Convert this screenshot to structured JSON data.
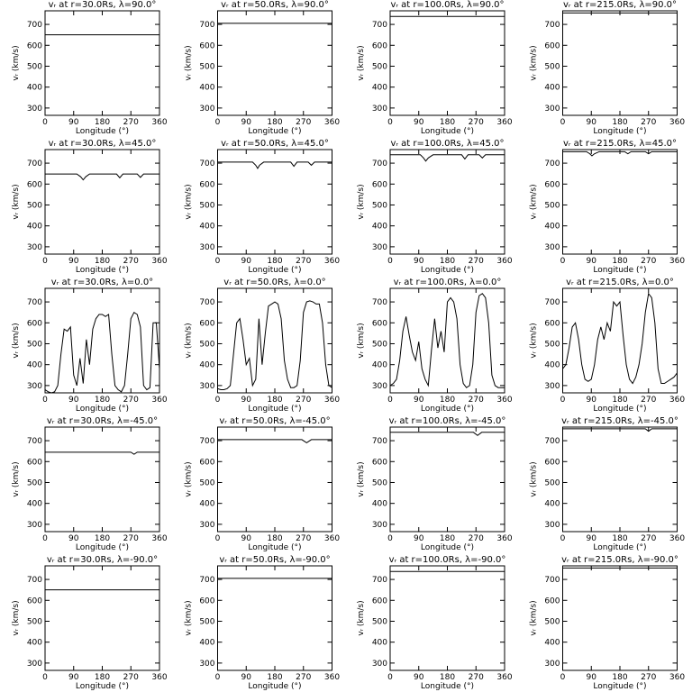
{
  "chart_data": [
    {
      "type": "line",
      "title": "vᵣ at r=30.0Rs, λ=90.0°",
      "xlabel": "Longitude (°)",
      "ylabel": "vᵣ (km/s)",
      "x": [
        0,
        360
      ],
      "values": [
        650,
        650
      ],
      "color": "#000000",
      "xlim": [
        0,
        360
      ],
      "ylim": [
        265,
        765
      ],
      "xticks": [
        0,
        90,
        180,
        270,
        360
      ],
      "yticks": [
        300,
        400,
        500,
        600,
        700
      ]
    },
    {
      "type": "line",
      "title": "vᵣ at r=50.0Rs, λ=90.0°",
      "xlabel": "Longitude (°)",
      "ylabel": "vᵣ (km/s)",
      "x": [
        0,
        360
      ],
      "values": [
        705,
        705
      ],
      "color": "#000000",
      "xlim": [
        0,
        360
      ],
      "ylim": [
        265,
        765
      ],
      "xticks": [
        0,
        90,
        180,
        270,
        360
      ],
      "yticks": [
        300,
        400,
        500,
        600,
        700
      ]
    },
    {
      "type": "line",
      "title": "vᵣ at r=100.0Rs, λ=90.0°",
      "xlabel": "Longitude (°)",
      "ylabel": "vᵣ (km/s)",
      "x": [
        0,
        360
      ],
      "values": [
        738,
        738
      ],
      "color": "#000000",
      "xlim": [
        0,
        360
      ],
      "ylim": [
        265,
        765
      ],
      "xticks": [
        0,
        90,
        180,
        270,
        360
      ],
      "yticks": [
        300,
        400,
        500,
        600,
        700
      ]
    },
    {
      "type": "line",
      "title": "vᵣ at r=215.0Rs, λ=90.0°",
      "xlabel": "Longitude (°)",
      "ylabel": "vᵣ (km/s)",
      "x": [
        0,
        360
      ],
      "values": [
        755,
        755
      ],
      "color": "#000000",
      "xlim": [
        0,
        360
      ],
      "ylim": [
        265,
        765
      ],
      "xticks": [
        0,
        90,
        180,
        270,
        360
      ],
      "yticks": [
        300,
        400,
        500,
        600,
        700
      ]
    },
    {
      "type": "line",
      "title": "vᵣ at r=30.0Rs, λ=45.0°",
      "xlabel": "Longitude (°)",
      "ylabel": "vᵣ (km/s)",
      "x": [
        0,
        100,
        112,
        120,
        128,
        140,
        225,
        235,
        245,
        290,
        300,
        310,
        360
      ],
      "values": [
        648,
        648,
        635,
        620,
        635,
        648,
        648,
        630,
        648,
        648,
        632,
        648,
        648
      ],
      "color": "#000000",
      "xlim": [
        0,
        360
      ],
      "ylim": [
        265,
        765
      ],
      "xticks": [
        0,
        90,
        180,
        270,
        360
      ],
      "yticks": [
        300,
        400,
        500,
        600,
        700
      ]
    },
    {
      "type": "line",
      "title": "vᵣ at r=50.0Rs, λ=45.0°",
      "xlabel": "Longitude (°)",
      "ylabel": "vᵣ (km/s)",
      "x": [
        0,
        110,
        120,
        126,
        132,
        145,
        230,
        240,
        250,
        285,
        295,
        305,
        360
      ],
      "values": [
        705,
        705,
        690,
        675,
        690,
        705,
        705,
        685,
        705,
        705,
        690,
        705,
        705
      ],
      "color": "#000000",
      "xlim": [
        0,
        360
      ],
      "ylim": [
        265,
        765
      ],
      "xticks": [
        0,
        90,
        180,
        270,
        360
      ],
      "yticks": [
        300,
        400,
        500,
        600,
        700
      ]
    },
    {
      "type": "line",
      "title": "vᵣ at r=100.0Rs, λ=45.0°",
      "xlabel": "Longitude (°)",
      "ylabel": "vᵣ (km/s)",
      "x": [
        0,
        95,
        105,
        112,
        120,
        135,
        225,
        235,
        245,
        280,
        290,
        300,
        360
      ],
      "values": [
        740,
        740,
        725,
        710,
        725,
        740,
        740,
        720,
        740,
        740,
        725,
        740,
        740
      ],
      "color": "#000000",
      "xlim": [
        0,
        360
      ],
      "ylim": [
        265,
        765
      ],
      "xticks": [
        0,
        90,
        180,
        270,
        360
      ],
      "yticks": [
        300,
        400,
        500,
        600,
        700
      ]
    },
    {
      "type": "line",
      "title": "vᵣ at r=215.0Rs, λ=45.0°",
      "xlabel": "Longitude (°)",
      "ylabel": "vᵣ (km/s)",
      "x": [
        0,
        75,
        85,
        92,
        100,
        115,
        195,
        205,
        215,
        260,
        270,
        280,
        360
      ],
      "values": [
        755,
        755,
        745,
        735,
        745,
        755,
        755,
        745,
        755,
        755,
        745,
        755,
        755
      ],
      "color": "#000000",
      "xlim": [
        0,
        360
      ],
      "ylim": [
        265,
        765
      ],
      "xticks": [
        0,
        90,
        180,
        270,
        360
      ],
      "yticks": [
        300,
        400,
        500,
        600,
        700
      ]
    },
    {
      "type": "line",
      "title": "vᵣ at r=30.0Rs, λ=0.0°",
      "xlabel": "Longitude (°)",
      "ylabel": "vᵣ (km/s)",
      "x": [
        0,
        10,
        20,
        30,
        40,
        50,
        60,
        70,
        80,
        90,
        100,
        110,
        120,
        130,
        140,
        150,
        160,
        170,
        180,
        190,
        200,
        210,
        220,
        230,
        240,
        250,
        260,
        270,
        280,
        290,
        300,
        310,
        320,
        330,
        340,
        350,
        360
      ],
      "values": [
        280,
        270,
        265,
        270,
        300,
        450,
        570,
        560,
        580,
        350,
        300,
        430,
        310,
        520,
        400,
        570,
        620,
        640,
        640,
        630,
        640,
        450,
        300,
        280,
        270,
        300,
        450,
        620,
        650,
        640,
        580,
        300,
        280,
        290,
        600,
        600,
        380
      ],
      "color": "#000000",
      "xlim": [
        0,
        360
      ],
      "ylim": [
        265,
        765
      ],
      "xticks": [
        0,
        90,
        180,
        270,
        360
      ],
      "yticks": [
        300,
        400,
        500,
        600,
        700
      ]
    },
    {
      "type": "line",
      "title": "vᵣ at r=50.0Rs, λ=0.0°",
      "xlabel": "Longitude (°)",
      "ylabel": "vᵣ (km/s)",
      "x": [
        0,
        10,
        20,
        30,
        40,
        50,
        60,
        70,
        80,
        90,
        100,
        110,
        120,
        130,
        140,
        150,
        160,
        170,
        180,
        190,
        200,
        210,
        220,
        230,
        240,
        250,
        260,
        270,
        280,
        290,
        300,
        310,
        320,
        330,
        340,
        350,
        360
      ],
      "values": [
        285,
        280,
        280,
        285,
        300,
        450,
        600,
        620,
        520,
        400,
        430,
        300,
        330,
        620,
        400,
        550,
        680,
        690,
        700,
        690,
        620,
        420,
        330,
        290,
        290,
        300,
        420,
        650,
        700,
        705,
        700,
        690,
        690,
        600,
        400,
        300,
        290
      ],
      "color": "#000000",
      "xlim": [
        0,
        360
      ],
      "ylim": [
        265,
        765
      ],
      "xticks": [
        0,
        90,
        180,
        270,
        360
      ],
      "yticks": [
        300,
        400,
        500,
        600,
        700
      ]
    },
    {
      "type": "line",
      "title": "vᵣ at r=100.0Rs, λ=0.0°",
      "xlabel": "Longitude (°)",
      "ylabel": "vᵣ (km/s)",
      "x": [
        0,
        10,
        20,
        30,
        40,
        50,
        60,
        70,
        80,
        90,
        100,
        110,
        120,
        130,
        140,
        150,
        160,
        170,
        180,
        190,
        200,
        210,
        220,
        230,
        240,
        250,
        260,
        270,
        280,
        290,
        300,
        310,
        320,
        330,
        340,
        350,
        360
      ],
      "values": [
        300,
        310,
        330,
        420,
        560,
        630,
        540,
        460,
        420,
        510,
        380,
        330,
        300,
        470,
        620,
        480,
        560,
        460,
        700,
        720,
        700,
        620,
        400,
        310,
        290,
        300,
        400,
        650,
        730,
        740,
        720,
        600,
        350,
        300,
        290,
        290,
        290
      ],
      "color": "#000000",
      "xlim": [
        0,
        360
      ],
      "ylim": [
        265,
        765
      ],
      "xticks": [
        0,
        90,
        180,
        270,
        360
      ],
      "yticks": [
        300,
        400,
        500,
        600,
        700
      ]
    },
    {
      "type": "line",
      "title": "vᵣ at r=215.0Rs, λ=0.0°",
      "xlabel": "Longitude (°)",
      "ylabel": "vᵣ (km/s)",
      "x": [
        0,
        10,
        20,
        30,
        40,
        50,
        60,
        70,
        80,
        90,
        100,
        110,
        120,
        130,
        140,
        150,
        160,
        170,
        180,
        190,
        200,
        210,
        220,
        230,
        240,
        250,
        260,
        270,
        280,
        290,
        300,
        310,
        320,
        330,
        340,
        350,
        360
      ],
      "values": [
        380,
        400,
        480,
        580,
        600,
        520,
        400,
        330,
        320,
        330,
        400,
        520,
        580,
        520,
        600,
        560,
        700,
        680,
        700,
        540,
        400,
        330,
        310,
        340,
        400,
        500,
        650,
        740,
        720,
        600,
        380,
        310,
        310,
        320,
        330,
        340,
        360
      ],
      "color": "#000000",
      "xlim": [
        0,
        360
      ],
      "ylim": [
        265,
        765
      ],
      "xticks": [
        0,
        90,
        180,
        270,
        360
      ],
      "yticks": [
        300,
        400,
        500,
        600,
        700
      ]
    },
    {
      "type": "line",
      "title": "vᵣ at r=30.0Rs, λ=-45.0°",
      "xlabel": "Longitude (°)",
      "ylabel": "vᵣ (km/s)",
      "x": [
        0,
        270,
        280,
        290,
        360
      ],
      "values": [
        645,
        645,
        635,
        645,
        645
      ],
      "color": "#000000",
      "xlim": [
        0,
        360
      ],
      "ylim": [
        265,
        765
      ],
      "xticks": [
        0,
        90,
        180,
        270,
        360
      ],
      "yticks": [
        300,
        400,
        500,
        600,
        700
      ]
    },
    {
      "type": "line",
      "title": "vᵣ at r=50.0Rs, λ=-45.0°",
      "xlabel": "Longitude (°)",
      "ylabel": "vᵣ (km/s)",
      "x": [
        0,
        265,
        280,
        295,
        360
      ],
      "values": [
        705,
        705,
        690,
        705,
        705
      ],
      "color": "#000000",
      "xlim": [
        0,
        360
      ],
      "ylim": [
        265,
        765
      ],
      "xticks": [
        0,
        90,
        180,
        270,
        360
      ],
      "yticks": [
        300,
        400,
        500,
        600,
        700
      ]
    },
    {
      "type": "line",
      "title": "vᵣ at r=100.0Rs, λ=-45.0°",
      "xlabel": "Longitude (°)",
      "ylabel": "vᵣ (km/s)",
      "x": [
        0,
        262,
        275,
        288,
        360
      ],
      "values": [
        740,
        740,
        725,
        740,
        740
      ],
      "color": "#000000",
      "xlim": [
        0,
        360
      ],
      "ylim": [
        265,
        765
      ],
      "xticks": [
        0,
        90,
        180,
        270,
        360
      ],
      "yticks": [
        300,
        400,
        500,
        600,
        700
      ]
    },
    {
      "type": "line",
      "title": "vᵣ at r=215.0Rs, λ=-45.0°",
      "xlabel": "Longitude (°)",
      "ylabel": "vᵣ (km/s)",
      "x": [
        0,
        260,
        270,
        280,
        360
      ],
      "values": [
        757,
        757,
        745,
        757,
        757
      ],
      "color": "#000000",
      "xlim": [
        0,
        360
      ],
      "ylim": [
        265,
        765
      ],
      "xticks": [
        0,
        90,
        180,
        270,
        360
      ],
      "yticks": [
        300,
        400,
        500,
        600,
        700
      ]
    },
    {
      "type": "line",
      "title": "vᵣ at r=30.0Rs, λ=-90.0°",
      "xlabel": "Longitude (°)",
      "ylabel": "vᵣ (km/s)",
      "x": [
        0,
        360
      ],
      "values": [
        650,
        650
      ],
      "color": "#000000",
      "xlim": [
        0,
        360
      ],
      "ylim": [
        265,
        765
      ],
      "xticks": [
        0,
        90,
        180,
        270,
        360
      ],
      "yticks": [
        300,
        400,
        500,
        600,
        700
      ]
    },
    {
      "type": "line",
      "title": "vᵣ at r=50.0Rs, λ=-90.0°",
      "xlabel": "Longitude (°)",
      "ylabel": "vᵣ (km/s)",
      "x": [
        0,
        360
      ],
      "values": [
        705,
        705
      ],
      "color": "#000000",
      "xlim": [
        0,
        360
      ],
      "ylim": [
        265,
        765
      ],
      "xticks": [
        0,
        90,
        180,
        270,
        360
      ],
      "yticks": [
        300,
        400,
        500,
        600,
        700
      ]
    },
    {
      "type": "line",
      "title": "vᵣ at r=100.0Rs, λ=-90.0°",
      "xlabel": "Longitude (°)",
      "ylabel": "vᵣ (km/s)",
      "x": [
        0,
        360
      ],
      "values": [
        738,
        738
      ],
      "color": "#000000",
      "xlim": [
        0,
        360
      ],
      "ylim": [
        265,
        765
      ],
      "xticks": [
        0,
        90,
        180,
        270,
        360
      ],
      "yticks": [
        300,
        400,
        500,
        600,
        700
      ]
    },
    {
      "type": "line",
      "title": "vᵣ at r=215.0Rs, λ=-90.0°",
      "xlabel": "Longitude (°)",
      "ylabel": "vᵣ (km/s)",
      "x": [
        0,
        360
      ],
      "values": [
        755,
        755
      ],
      "color": "#000000",
      "xlim": [
        0,
        360
      ],
      "ylim": [
        265,
        765
      ],
      "xticks": [
        0,
        90,
        180,
        270,
        360
      ],
      "yticks": [
        300,
        400,
        500,
        600,
        700
      ]
    }
  ]
}
